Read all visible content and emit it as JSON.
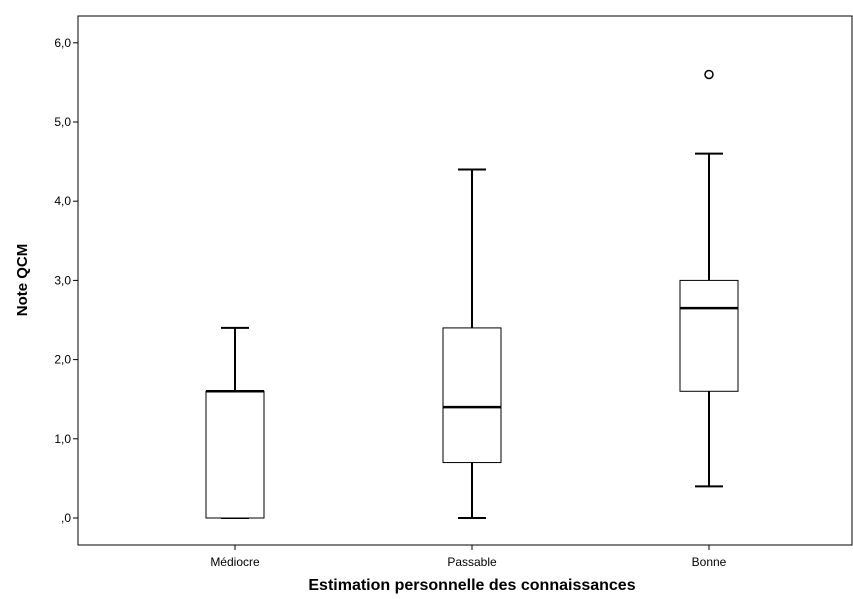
{
  "chart_data": {
    "type": "boxplot",
    "xlabel": "Estimation personnelle des connaissances",
    "ylabel": "Note QCM",
    "ylim": [
      -0.3,
      6.3
    ],
    "yticks": [
      0,
      1,
      2,
      3,
      4,
      5,
      6
    ],
    "ytick_labels": [
      ",0",
      "1,0",
      "2,0",
      "3,0",
      "4,0",
      "5,0",
      "6,0"
    ],
    "categories": [
      "Médiocre",
      "Passable",
      "Bonne"
    ],
    "boxes": [
      {
        "category": "Médiocre",
        "whisker_low": 0.0,
        "q1": 0.0,
        "median": 1.6,
        "q3": 1.6,
        "whisker_high": 2.4,
        "outliers": []
      },
      {
        "category": "Passable",
        "whisker_low": 0.0,
        "q1": 0.7,
        "median": 1.4,
        "q3": 2.4,
        "whisker_high": 4.4,
        "outliers": []
      },
      {
        "category": "Bonne",
        "whisker_low": 0.4,
        "q1": 1.6,
        "median": 2.65,
        "q3": 3.0,
        "whisker_high": 4.6,
        "outliers": [
          5.6
        ]
      }
    ],
    "grid": false,
    "legend": "none"
  }
}
